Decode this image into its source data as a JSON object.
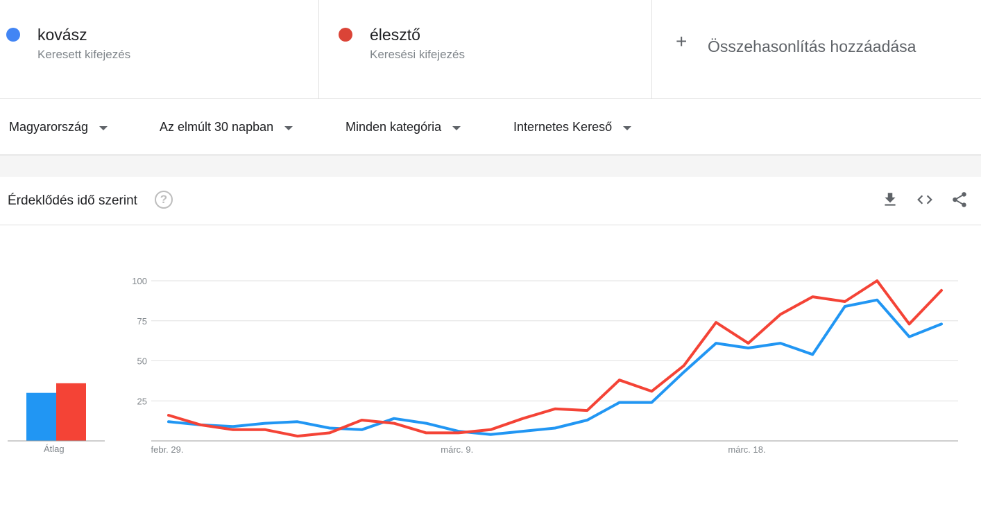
{
  "terms": [
    {
      "name": "kovász",
      "subtitle": "Keresett kifejezés",
      "color": "#4285f4"
    },
    {
      "name": "élesztő",
      "subtitle": "Keresési kifejezés",
      "color": "#db4437"
    }
  ],
  "add_compare": {
    "icon": "plus-icon",
    "label": "Összehasonlítás hozzáadása"
  },
  "filters": {
    "region": "Magyarország",
    "time": "Az elmúlt 30 napban",
    "category": "Minden kategória",
    "search_type": "Internetes Kereső"
  },
  "card": {
    "title": "Érdeklődés idő szerint",
    "help_icon": "question-circle-icon",
    "tools": [
      "download-icon",
      "embed-code-icon",
      "share-icon"
    ]
  },
  "chart_data": {
    "type": "line",
    "ylim": [
      0,
      100
    ],
    "yticks": [
      25,
      50,
      75,
      100
    ],
    "xtick_labels": [
      "febr. 29.",
      "márc. 9.",
      "márc. 18."
    ],
    "xtick_indices": [
      0,
      9,
      18
    ],
    "grid": true,
    "average": {
      "label": "Átlag",
      "values": [
        30,
        36
      ]
    },
    "series": [
      {
        "name": "kovász",
        "color": "#2196f3",
        "values": [
          12,
          10,
          9,
          11,
          12,
          8,
          7,
          14,
          11,
          6,
          4,
          6,
          8,
          13,
          24,
          24,
          43,
          61,
          58,
          61,
          54,
          84,
          88,
          65,
          73
        ]
      },
      {
        "name": "élesztő",
        "color": "#f44336",
        "values": [
          16,
          10,
          7,
          7,
          3,
          5,
          13,
          11,
          5,
          5,
          7,
          14,
          20,
          19,
          38,
          31,
          47,
          74,
          61,
          79,
          90,
          87,
          100,
          73,
          94
        ]
      }
    ]
  }
}
